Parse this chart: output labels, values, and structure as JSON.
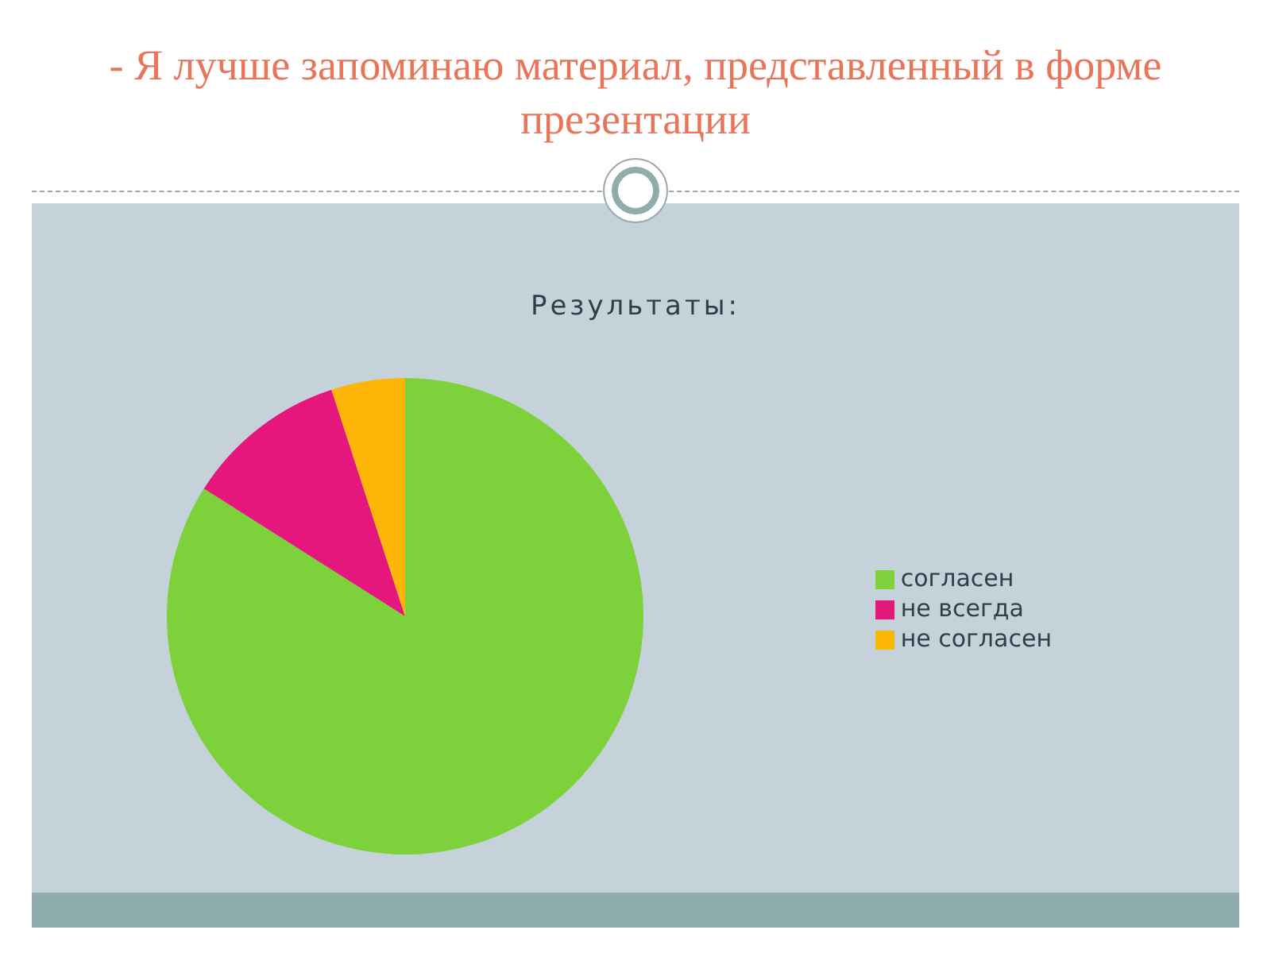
{
  "chart_data": {
    "type": "pie",
    "title": "- Я лучше запоминаю материал, представленный в форме презентации",
    "subtitle": "Результаты:",
    "categories": [
      "согласен",
      "не всегда",
      "не согласен"
    ],
    "values": [
      84,
      11,
      5
    ],
    "colors": [
      "#7dd13b",
      "#e5177d",
      "#fdb508"
    ],
    "legend": "right"
  }
}
